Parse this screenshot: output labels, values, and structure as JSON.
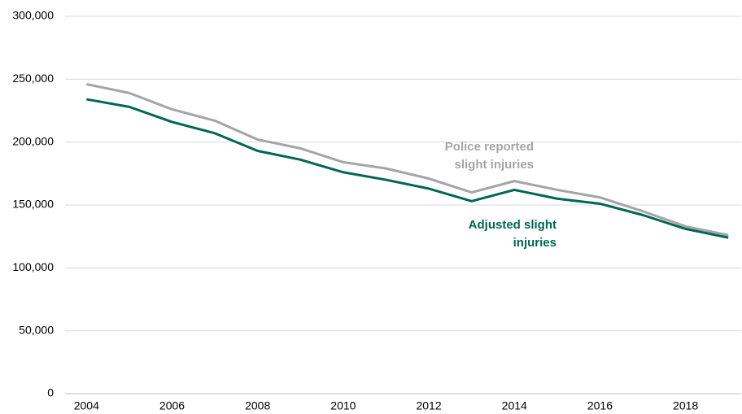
{
  "chart_data": {
    "type": "line",
    "x": [
      2004,
      2005,
      2006,
      2007,
      2008,
      2009,
      2010,
      2011,
      2012,
      2013,
      2014,
      2015,
      2016,
      2017,
      2018,
      2019
    ],
    "series": [
      {
        "name": "Police reported slight injuries",
        "color": "#a5a5a5",
        "values": [
          246000,
          239000,
          226000,
          217000,
          202000,
          195000,
          184000,
          179000,
          171000,
          160000,
          169000,
          162000,
          156000,
          145000,
          133000,
          126000
        ]
      },
      {
        "name": "Adjusted slight injuries",
        "color": "#006853",
        "values": [
          234000,
          228000,
          216000,
          207000,
          193000,
          186000,
          176000,
          170000,
          163000,
          153000,
          162000,
          155000,
          151000,
          142000,
          131000,
          124000
        ]
      }
    ],
    "xlim": [
      2003.5,
      2019.3
    ],
    "xticks": [
      2004,
      2006,
      2008,
      2010,
      2012,
      2014,
      2016,
      2018
    ],
    "ylim": [
      0,
      300000
    ],
    "yticks": [
      0,
      {
        "value": 50000,
        "label": "50,000"
      },
      {
        "value": 100000,
        "label": "100,000"
      },
      {
        "value": 150000,
        "label": "150,000"
      },
      {
        "value": 200000,
        "label": "200,000"
      },
      {
        "value": 250000,
        "label": "250,000"
      },
      {
        "value": 300000,
        "label": "300,000"
      }
    ],
    "grid": true
  }
}
